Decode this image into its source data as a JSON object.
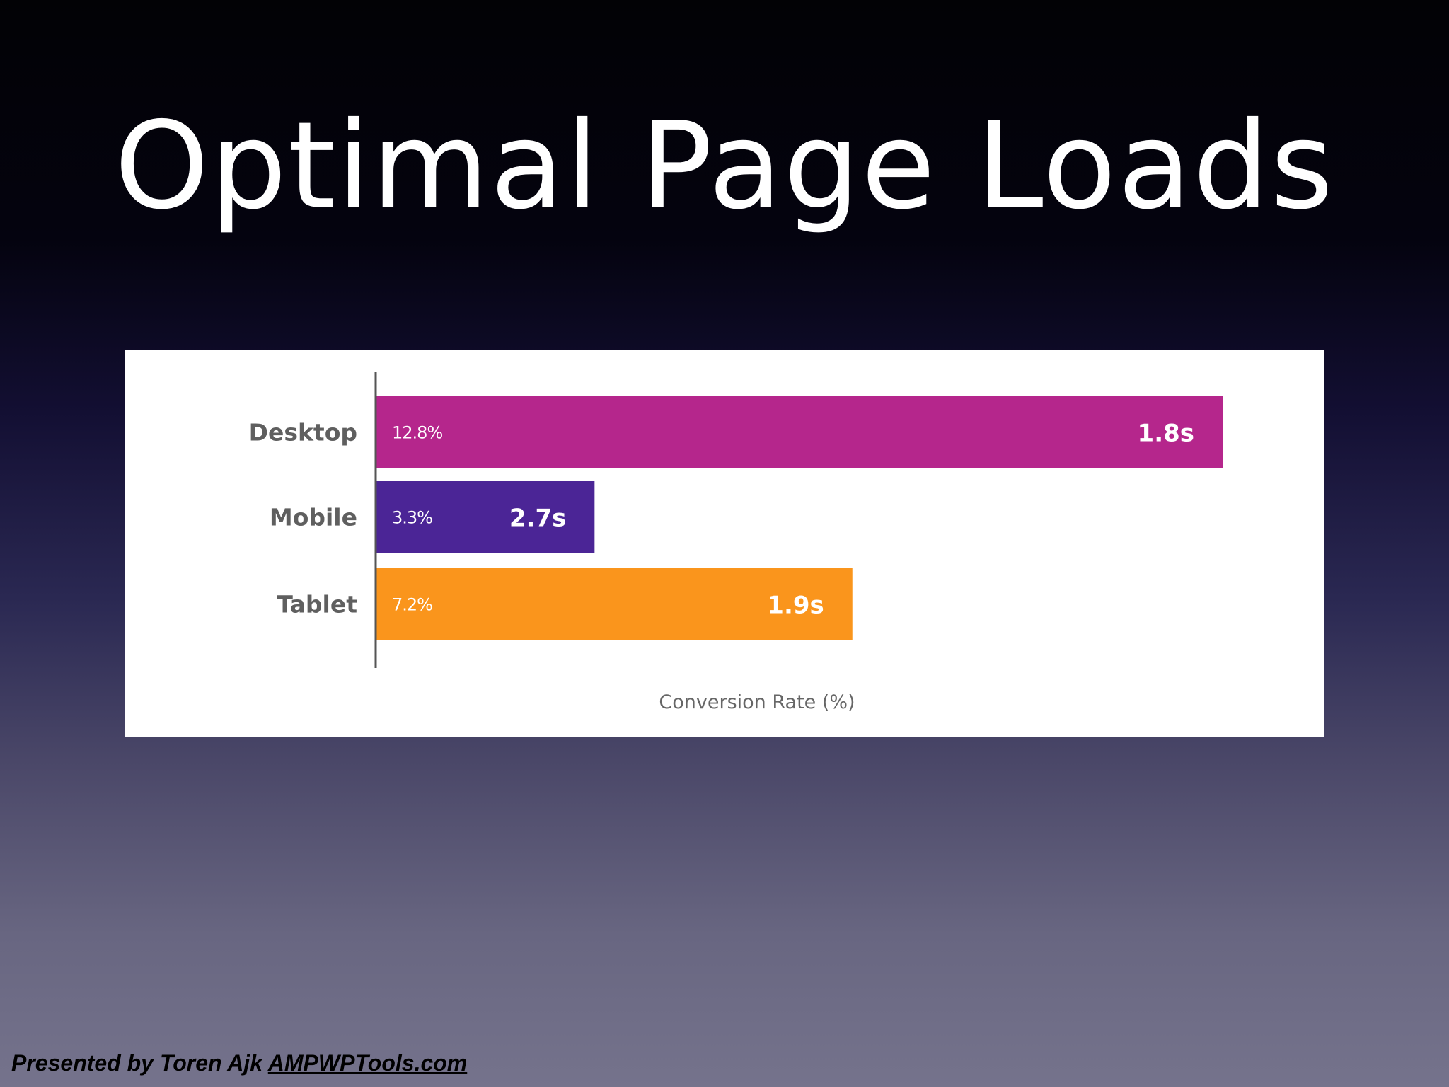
{
  "slide": {
    "title": "Optimal Page Loads"
  },
  "footer": {
    "presenter": "Presented by Toren Ajk",
    "link": "AMPWPTools.com"
  },
  "chart_data": {
    "type": "bar",
    "orientation": "horizontal",
    "categories": [
      "Desktop",
      "Mobile",
      "Tablet"
    ],
    "values": [
      12.8,
      3.3,
      7.2
    ],
    "value_labels": [
      "12.8%",
      "3.3%",
      "7.2%"
    ],
    "load_times": [
      "1.8s",
      "2.7s",
      "1.9s"
    ],
    "colors": [
      "#b5268c",
      "#4b2596",
      "#fa951c"
    ],
    "xlabel": "Conversion Rate (%)",
    "xlim": [
      0,
      12.8
    ],
    "grid": false,
    "legend": "none"
  }
}
